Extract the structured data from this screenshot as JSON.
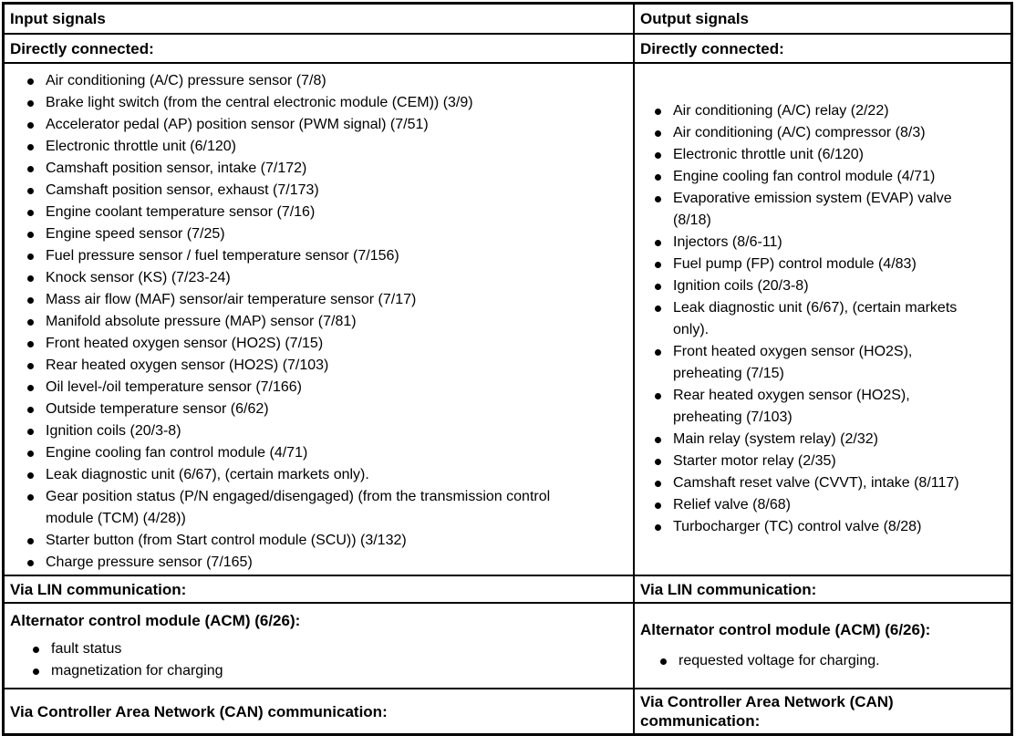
{
  "colors": {
    "border": "#000000",
    "text": "#000000",
    "background": "#ffffff"
  },
  "table": {
    "input": {
      "header": "Input signals",
      "directly_connected_label": "Directly connected:",
      "directly_connected_items": [
        "Air conditioning (A/C) pressure sensor (7/8)",
        "Brake light switch (from the central electronic module (CEM)) (3/9)",
        "Accelerator pedal (AP) position sensor (PWM signal) (7/51)",
        "Electronic throttle unit (6/120)",
        "Camshaft position sensor, intake (7/172)",
        "Camshaft position sensor, exhaust (7/173)",
        "Engine coolant temperature sensor (7/16)",
        "Engine speed sensor (7/25)",
        "Fuel pressure sensor / fuel temperature sensor (7/156)",
        "Knock sensor (KS) (7/23-24)",
        "Mass air flow (MAF) sensor/air temperature sensor (7/17)",
        "Manifold absolute pressure (MAP) sensor (7/81)",
        "Front heated oxygen sensor (HO2S) (7/15)",
        "Rear heated oxygen sensor (HO2S) (7/103)",
        "Oil level-/oil temperature sensor (7/166)",
        "Outside temperature sensor (6/62)",
        "Ignition coils (20/3-8)",
        "Engine cooling fan control module (4/71)",
        "Leak diagnostic unit (6/67), (certain markets only).",
        "Gear position status (P/N engaged/disengaged) (from the transmission control module (TCM) (4/28))",
        "Starter button (from Start control module (SCU)) (3/132)",
        "Charge pressure sensor (7/165)"
      ],
      "via_lin_label": "Via LIN communication:",
      "acm_heading": "Alternator control module (ACM) (6/26):",
      "acm_items": [
        "fault status",
        "magnetization for charging"
      ],
      "via_can_label": "Via Controller Area Network (CAN) communication:"
    },
    "output": {
      "header": "Output signals",
      "directly_connected_label": "Directly connected:",
      "directly_connected_items": [
        "Air conditioning (A/C) relay (2/22)",
        "Air conditioning (A/C) compressor (8/3)",
        "Electronic throttle unit (6/120)",
        "Engine cooling fan control module (4/71)",
        "Evaporative emission system (EVAP) valve (8/18)",
        "Injectors (8/6-11)",
        "Fuel pump (FP) control module (4/83)",
        "Ignition coils (20/3-8)",
        "Leak diagnostic unit (6/67), (certain markets only).",
        "Front heated oxygen sensor (HO2S), preheating (7/15)",
        "Rear heated oxygen sensor (HO2S), preheating (7/103)",
        "Main relay (system relay) (2/32)",
        "Starter motor relay (2/35)",
        "Camshaft reset valve (CVVT), intake (8/117)",
        "Relief valve (8/68)",
        "Turbocharger (TC) control valve (8/28)"
      ],
      "via_lin_label": "Via LIN communication:",
      "acm_heading": "Alternator control module (ACM) (6/26):",
      "acm_items": [
        "requested voltage for charging."
      ],
      "via_can_label": "Via Controller Area Network (CAN) communication:"
    }
  }
}
